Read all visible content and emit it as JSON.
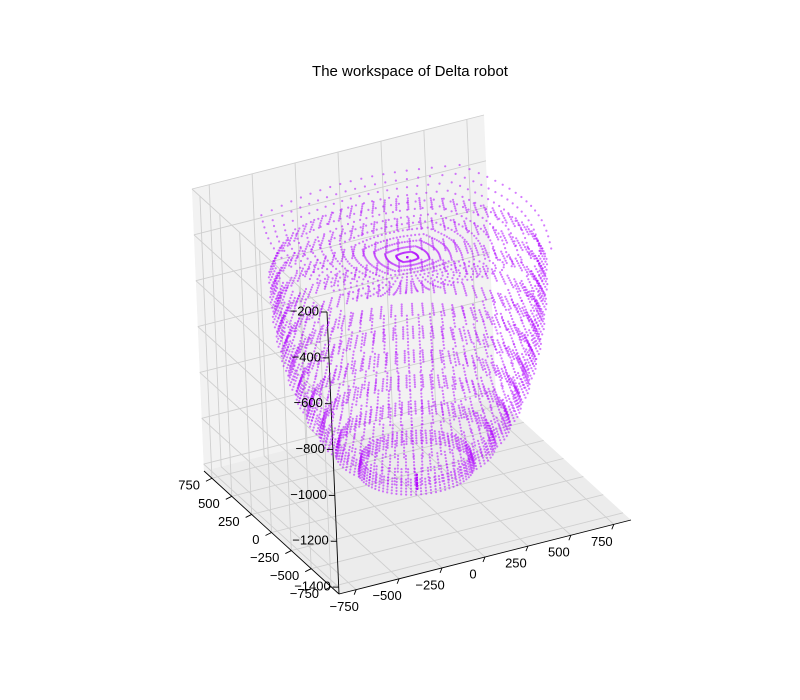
{
  "chart_data": {
    "type": "scatter",
    "projection": "3d",
    "title": "The workspace of Delta robot",
    "xlabel": "",
    "ylabel": "",
    "zlabel": "",
    "x_ticks": [
      -750,
      -500,
      -250,
      0,
      250,
      500,
      750
    ],
    "y_ticks": [
      -750,
      -500,
      -250,
      0,
      250,
      500,
      750
    ],
    "z_ticks": [
      -200,
      -400,
      -600,
      -800,
      -1000,
      -1200,
      -1400
    ],
    "x_tick_labels": [
      "−750",
      "−500",
      "−250",
      "0",
      "250",
      "500",
      "750"
    ],
    "y_tick_labels": [
      "−750",
      "−500",
      "−250",
      "0",
      "250",
      "500",
      "750"
    ],
    "z_tick_labels": [
      "−200",
      "−400",
      "−600",
      "−800",
      "−1000",
      "−1200",
      "−1400"
    ],
    "xlim": [
      -850,
      850
    ],
    "ylim": [
      -850,
      850
    ],
    "zlim": [
      -1430,
      -200
    ],
    "grid": true,
    "series": [
      {
        "color": "#b30fff",
        "marker": "dot",
        "extent": {
          "x": [
            -700,
            700
          ],
          "y": [
            -700,
            700
          ],
          "z_top": -330,
          "z_bottom": -1370,
          "top_shape": "square-rounded",
          "bottom_shape": "bowl"
        }
      }
    ]
  }
}
